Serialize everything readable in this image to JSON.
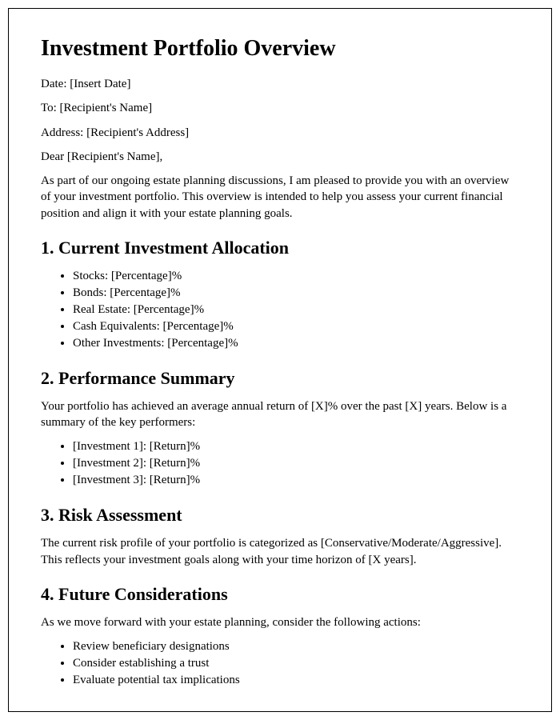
{
  "title": "Investment Portfolio Overview",
  "meta": {
    "date": "Date: [Insert Date]",
    "to": "To: [Recipient's Name]",
    "address": "Address: [Recipient's Address]",
    "salutation": "Dear [Recipient's Name],"
  },
  "intro": "As part of our ongoing estate planning discussions, I am pleased to provide you with an overview of your investment portfolio. This overview is intended to help you assess your current financial position and align it with your estate planning goals.",
  "sections": {
    "allocation": {
      "heading": "1. Current Investment Allocation",
      "items": [
        "Stocks: [Percentage]%",
        "Bonds: [Percentage]%",
        "Real Estate: [Percentage]%",
        "Cash Equivalents: [Percentage]%",
        "Other Investments: [Percentage]%"
      ]
    },
    "performance": {
      "heading": "2. Performance Summary",
      "body": "Your portfolio has achieved an average annual return of [X]% over the past [X] years. Below is a summary of the key performers:",
      "items": [
        "[Investment 1]: [Return]%",
        "[Investment 2]: [Return]%",
        "[Investment 3]: [Return]%"
      ]
    },
    "risk": {
      "heading": "3. Risk Assessment",
      "body": "The current risk profile of your portfolio is categorized as [Conservative/Moderate/Aggressive]. This reflects your investment goals along with your time horizon of [X years]."
    },
    "future": {
      "heading": "4. Future Considerations",
      "body": "As we move forward with your estate planning, consider the following actions:",
      "items": [
        "Review beneficiary designations",
        "Consider establishing a trust",
        "Evaluate potential tax implications"
      ]
    }
  }
}
